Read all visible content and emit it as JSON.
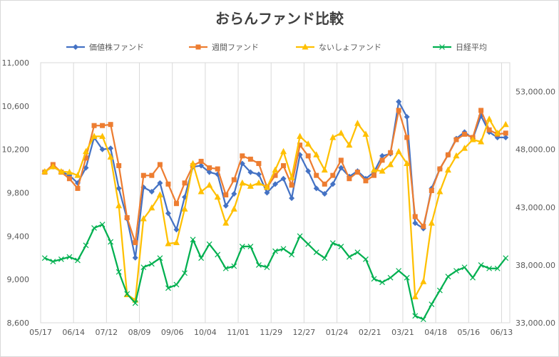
{
  "chart_data": {
    "type": "line",
    "title": "おらんファンド比較",
    "x_tick_labels": [
      "05/17",
      "06/14",
      "07/12",
      "08/09",
      "09/06",
      "10/04",
      "11/01",
      "11/29",
      "12/27",
      "01/24",
      "02/21",
      "03/21",
      "04/18",
      "05/16",
      "06/13"
    ],
    "y_left_lim": [
      8600,
      11000
    ],
    "y_left_ticks": [
      "8,600",
      "9,000",
      "9,400",
      "9,800",
      "10,200",
      "10,600",
      "11,000"
    ],
    "y_right_lim": [
      33000,
      55500
    ],
    "y_right_ticks": [
      "33,000.00",
      "38,000.00",
      "43,000.00",
      "48,000.00",
      "53,000.00"
    ],
    "grid": "vertical",
    "legend_position": "top",
    "series": [
      {
        "name": "価値株ファンド",
        "axis": "left",
        "color": "#4472C4",
        "marker": "diamond",
        "values": [
          9995,
          10040,
          9995,
          9960,
          9890,
          10030,
          10310,
          10200,
          10210,
          9840,
          9560,
          9200,
          9850,
          9810,
          9890,
          9610,
          9460,
          9760,
          10040,
          10050,
          9990,
          9970,
          9680,
          9790,
          10070,
          9990,
          9970,
          9800,
          9880,
          9930,
          9750,
          10150,
          10000,
          9840,
          9790,
          9880,
          10030,
          9950,
          10000,
          9930,
          9990,
          10140,
          10160,
          10640,
          10500,
          9520,
          9470,
          9840,
          10020,
          10150,
          10300,
          10360,
          10300,
          10510,
          10360,
          10310,
          10310
        ]
      },
      {
        "name": "週間ファンド",
        "axis": "left",
        "color": "#ED7D31",
        "marker": "square",
        "values": [
          9990,
          10060,
          9990,
          9930,
          9840,
          10120,
          10420,
          10420,
          10430,
          10050,
          9570,
          9340,
          9960,
          9960,
          10060,
          9880,
          9700,
          9890,
          10050,
          10090,
          10030,
          10020,
          9780,
          9920,
          10140,
          10110,
          10070,
          9850,
          9960,
          10050,
          9870,
          10240,
          10140,
          9960,
          9880,
          9960,
          10100,
          9930,
          9990,
          9910,
          9960,
          10100,
          10170,
          10560,
          10310,
          9580,
          9490,
          9820,
          10020,
          10150,
          10290,
          10340,
          10310,
          10560,
          10380,
          10340,
          10350
        ]
      },
      {
        "name": "ないしょファンド",
        "axis": "left",
        "color": "#FFC000",
        "marker": "triangle",
        "values": [
          9995,
          10040,
          9995,
          9990,
          9960,
          10180,
          10320,
          10320,
          10130,
          9680,
          8860,
          8810,
          9560,
          9660,
          9780,
          9330,
          9340,
          9650,
          10070,
          9810,
          9870,
          9760,
          9520,
          9650,
          9890,
          9860,
          9890,
          9850,
          10010,
          10180,
          9940,
          10320,
          10250,
          10150,
          10010,
          10310,
          10350,
          10240,
          10440,
          10340,
          10010,
          10000,
          10060,
          10180,
          10070,
          8840,
          8980,
          9520,
          9810,
          10010,
          10140,
          10210,
          10290,
          10270,
          10480,
          10350,
          10430
        ]
      },
      {
        "name": "日経平均",
        "axis": "right",
        "color": "#00B050",
        "marker": "x",
        "values": [
          38600,
          38300,
          38500,
          38700,
          38400,
          39700,
          41200,
          41500,
          40000,
          37400,
          35500,
          34700,
          37800,
          38100,
          38600,
          36000,
          36300,
          37300,
          40200,
          38600,
          39800,
          38900,
          37700,
          37900,
          39600,
          39600,
          38000,
          37800,
          39200,
          39400,
          38900,
          40500,
          39800,
          39100,
          38600,
          39900,
          39600,
          38700,
          39100,
          38500,
          36800,
          36500,
          36900,
          37500,
          36900,
          33600,
          33300,
          34600,
          35800,
          37000,
          37500,
          37800,
          36900,
          38000,
          37700,
          37700,
          38600
        ]
      }
    ]
  }
}
